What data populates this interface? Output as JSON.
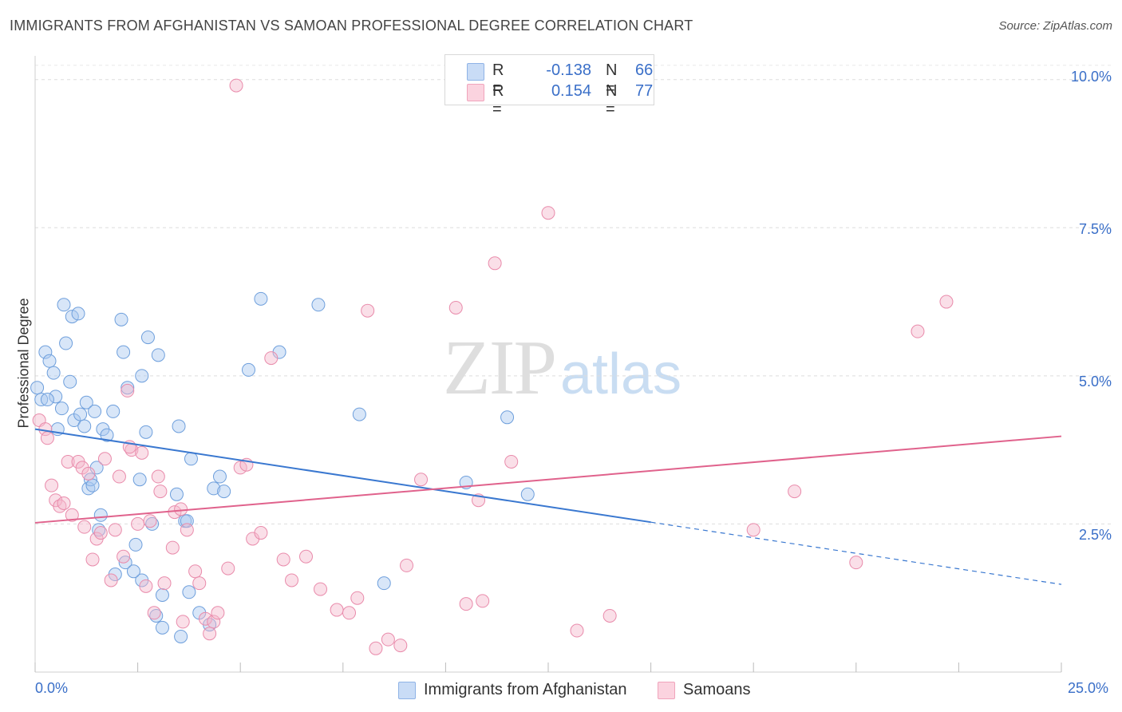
{
  "title": "IMMIGRANTS FROM AFGHANISTAN VS SAMOAN PROFESSIONAL DEGREE CORRELATION CHART",
  "source": "Source: ZipAtlas.com",
  "watermark": {
    "zip": "ZIP",
    "atlas": "atlas"
  },
  "legend_top": [
    {
      "r_label": "R =",
      "r_value": "-0.138",
      "n_label": "N =",
      "n_value": "66",
      "color": "#a9c8f0"
    },
    {
      "r_label": "R =",
      "r_value": "0.154",
      "n_label": "N =",
      "n_value": "77",
      "color": "#f5b8cb"
    }
  ],
  "legend_bottom": [
    {
      "label": "Immigrants from Afghanistan",
      "color": "#a9c8f0"
    },
    {
      "label": "Samoans",
      "color": "#f5b8cb"
    }
  ],
  "axis": {
    "ylabel": "Professional Degree",
    "x_min_label": "0.0%",
    "x_max_label": "25.0%",
    "y_tick_labels": [
      "2.5%",
      "5.0%",
      "7.5%",
      "10.0%"
    ]
  },
  "chart_data": {
    "type": "scatter",
    "title": "IMMIGRANTS FROM AFGHANISTAN VS SAMOAN PROFESSIONAL DEGREE CORRELATION CHART",
    "xlabel": "",
    "ylabel": "Professional Degree",
    "xlim": [
      0,
      25
    ],
    "ylim": [
      0,
      10.4
    ],
    "x_unit": "%",
    "y_unit": "%",
    "y_ticks": [
      2.5,
      5.0,
      7.5,
      10.0
    ],
    "grid": true,
    "legend_position": "bottom",
    "series": [
      {
        "name": "Immigrants from Afghanistan",
        "color": "#a9c8f0",
        "line_color": "#3a78d0",
        "trend": {
          "x": [
            0,
            15.0
          ],
          "y": [
            4.1,
            2.53
          ],
          "dashed_to": [
            25,
            1.48
          ]
        },
        "points": [
          [
            0.05,
            4.8
          ],
          [
            0.15,
            4.6
          ],
          [
            0.25,
            5.4
          ],
          [
            0.35,
            5.25
          ],
          [
            0.45,
            5.05
          ],
          [
            0.5,
            4.65
          ],
          [
            0.55,
            4.1
          ],
          [
            0.65,
            4.45
          ],
          [
            0.7,
            6.2
          ],
          [
            0.75,
            5.55
          ],
          [
            0.85,
            4.9
          ],
          [
            0.9,
            6.0
          ],
          [
            0.95,
            4.25
          ],
          [
            1.05,
            6.05
          ],
          [
            1.1,
            4.35
          ],
          [
            1.2,
            4.15
          ],
          [
            1.25,
            4.55
          ],
          [
            1.3,
            3.1
          ],
          [
            1.35,
            3.25
          ],
          [
            1.4,
            3.15
          ],
          [
            1.45,
            4.4
          ],
          [
            1.5,
            3.45
          ],
          [
            1.6,
            2.65
          ],
          [
            1.65,
            4.1
          ],
          [
            1.75,
            4.0
          ],
          [
            1.9,
            4.4
          ],
          [
            1.95,
            1.65
          ],
          [
            2.1,
            5.95
          ],
          [
            2.15,
            5.4
          ],
          [
            2.2,
            1.85
          ],
          [
            2.25,
            4.8
          ],
          [
            2.45,
            2.15
          ],
          [
            2.55,
            3.25
          ],
          [
            2.6,
            5.0
          ],
          [
            2.6,
            1.55
          ],
          [
            2.7,
            4.05
          ],
          [
            2.75,
            5.65
          ],
          [
            2.85,
            2.5
          ],
          [
            2.95,
            0.95
          ],
          [
            3.0,
            5.35
          ],
          [
            3.1,
            1.3
          ],
          [
            3.1,
            0.75
          ],
          [
            3.45,
            3.0
          ],
          [
            3.5,
            4.15
          ],
          [
            3.55,
            0.6
          ],
          [
            3.65,
            2.55
          ],
          [
            3.7,
            2.55
          ],
          [
            3.75,
            1.35
          ],
          [
            3.8,
            3.6
          ],
          [
            4.25,
            0.8
          ],
          [
            4.35,
            3.1
          ],
          [
            4.5,
            3.3
          ],
          [
            4.6,
            3.05
          ],
          [
            5.2,
            5.1
          ],
          [
            5.5,
            6.3
          ],
          [
            5.95,
            5.4
          ],
          [
            6.9,
            6.2
          ],
          [
            7.9,
            4.35
          ],
          [
            8.5,
            1.5
          ],
          [
            10.5,
            3.2
          ],
          [
            11.5,
            4.3
          ],
          [
            12.0,
            3.0
          ],
          [
            1.55,
            2.4
          ],
          [
            0.3,
            4.6
          ],
          [
            2.4,
            1.7
          ],
          [
            4.0,
            1.0
          ]
        ]
      },
      {
        "name": "Samoans",
        "color": "#f5b8cb",
        "line_color": "#e0628c",
        "trend": {
          "x": [
            0,
            25
          ],
          "y": [
            2.52,
            3.98
          ]
        },
        "points": [
          [
            0.1,
            4.25
          ],
          [
            0.25,
            4.1
          ],
          [
            0.3,
            3.95
          ],
          [
            0.4,
            3.15
          ],
          [
            0.5,
            2.9
          ],
          [
            0.6,
            2.8
          ],
          [
            0.7,
            2.85
          ],
          [
            0.8,
            3.55
          ],
          [
            0.9,
            2.65
          ],
          [
            1.05,
            3.55
          ],
          [
            1.15,
            3.45
          ],
          [
            1.3,
            3.35
          ],
          [
            1.4,
            1.9
          ],
          [
            1.5,
            2.25
          ],
          [
            1.6,
            2.35
          ],
          [
            1.7,
            3.6
          ],
          [
            1.85,
            1.55
          ],
          [
            1.95,
            2.4
          ],
          [
            2.05,
            3.3
          ],
          [
            2.15,
            1.95
          ],
          [
            2.25,
            4.75
          ],
          [
            2.35,
            3.75
          ],
          [
            2.5,
            2.5
          ],
          [
            2.6,
            3.7
          ],
          [
            2.7,
            1.45
          ],
          [
            2.8,
            2.55
          ],
          [
            2.9,
            1.0
          ],
          [
            3.0,
            3.3
          ],
          [
            3.05,
            3.05
          ],
          [
            3.15,
            1.5
          ],
          [
            3.35,
            2.1
          ],
          [
            3.4,
            2.7
          ],
          [
            3.55,
            2.75
          ],
          [
            3.7,
            2.4
          ],
          [
            3.9,
            1.7
          ],
          [
            4.0,
            1.5
          ],
          [
            4.15,
            0.9
          ],
          [
            4.25,
            0.65
          ],
          [
            4.35,
            0.85
          ],
          [
            4.45,
            1.0
          ],
          [
            4.7,
            1.75
          ],
          [
            4.9,
            9.9
          ],
          [
            5.0,
            3.45
          ],
          [
            5.15,
            3.5
          ],
          [
            5.3,
            2.25
          ],
          [
            5.5,
            2.35
          ],
          [
            5.75,
            5.3
          ],
          [
            6.05,
            1.9
          ],
          [
            6.25,
            1.55
          ],
          [
            6.6,
            1.95
          ],
          [
            6.95,
            1.4
          ],
          [
            7.35,
            1.05
          ],
          [
            7.65,
            1.0
          ],
          [
            7.85,
            1.25
          ],
          [
            8.1,
            6.1
          ],
          [
            8.3,
            0.4
          ],
          [
            8.6,
            0.55
          ],
          [
            8.9,
            0.45
          ],
          [
            9.05,
            1.8
          ],
          [
            9.4,
            3.25
          ],
          [
            10.25,
            6.15
          ],
          [
            10.5,
            1.15
          ],
          [
            10.8,
            2.9
          ],
          [
            10.9,
            1.2
          ],
          [
            11.2,
            6.9
          ],
          [
            11.6,
            3.55
          ],
          [
            12.5,
            7.75
          ],
          [
            13.2,
            0.7
          ],
          [
            14.0,
            0.95
          ],
          [
            17.5,
            2.4
          ],
          [
            18.5,
            3.05
          ],
          [
            20.0,
            1.85
          ],
          [
            21.5,
            5.75
          ],
          [
            22.2,
            6.25
          ],
          [
            2.3,
            3.8
          ],
          [
            1.2,
            2.45
          ],
          [
            3.6,
            0.85
          ]
        ]
      }
    ]
  }
}
